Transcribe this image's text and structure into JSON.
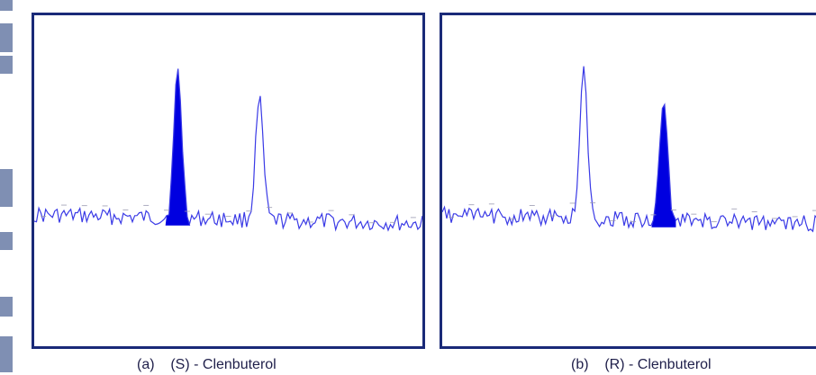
{
  "chart_data": [
    {
      "type": "line",
      "panel_label": "(a)",
      "caption": "(S) - Clenbuterol",
      "peaks": [
        {
          "position": 0.37,
          "height": 0.42,
          "filled": true
        },
        {
          "position": 0.58,
          "height": 0.34,
          "filled": false
        }
      ],
      "line_color": "#3a3ae6",
      "fill_color": "#0000e0"
    },
    {
      "type": "line",
      "panel_label": "(b)",
      "caption": "(R) - Clenbuterol",
      "peaks": [
        {
          "position": 0.37,
          "height": 0.42,
          "filled": false
        },
        {
          "position": 0.58,
          "height": 0.34,
          "filled": true
        }
      ],
      "line_color": "#3a3ae6",
      "fill_color": "#0000e0"
    }
  ],
  "colors": {
    "frame": "#1a2a78",
    "caption_text": "#1f1f4a"
  }
}
